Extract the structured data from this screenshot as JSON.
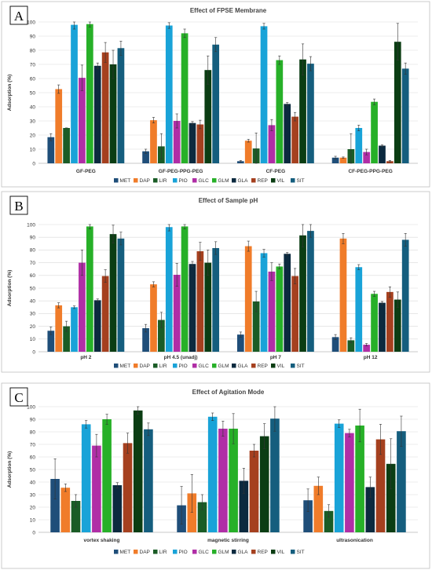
{
  "series_names": [
    "MET",
    "DAP",
    "LIR",
    "PIO",
    "GLC",
    "GLM",
    "GLA",
    "REP",
    "VIL",
    "SIT"
  ],
  "colors": {
    "MET": "#1f4e79",
    "DAP": "#f07c2a",
    "LIR": "#1a5c26",
    "PIO": "#19a3d8",
    "GLC": "#b02ea6",
    "GLM": "#27b028",
    "GLA": "#0c2a3f",
    "REP": "#a5401f",
    "VIL": "#0b3d13",
    "SIT": "#155e7e"
  },
  "chart_data": [
    {
      "type": "bar",
      "panel_label": "A",
      "title": "Effect of FPSE Membrane",
      "ylabel": "Adsorption (%)",
      "ylim": [
        0,
        100
      ],
      "yticks": [
        "0",
        "10",
        "20",
        "30",
        "40",
        "50",
        "60",
        "70",
        "80",
        "90",
        "100"
      ],
      "categories": [
        "GF-PEG",
        "GF-PEG-PPG-PEG",
        "CF-PEG",
        "CF-PEG-PPG-PEG"
      ],
      "series": [
        {
          "name": "MET",
          "values": [
            18.5,
            8.5,
            1.5,
            4
          ],
          "errors": [
            2.5,
            1.5,
            0.5,
            1
          ]
        },
        {
          "name": "DAP",
          "values": [
            52.5,
            30.5,
            16,
            4
          ],
          "errors": [
            3,
            2,
            1,
            0.5
          ]
        },
        {
          "name": "LIR",
          "values": [
            25,
            12,
            10.5,
            10
          ],
          "errors": [
            0,
            9,
            11,
            11
          ]
        },
        {
          "name": "PIO",
          "values": [
            98,
            97.5,
            97,
            25
          ],
          "errors": [
            3,
            2,
            2,
            2
          ]
        },
        {
          "name": "GLC",
          "values": [
            60.5,
            30,
            27,
            8
          ],
          "errors": [
            9,
            5,
            4,
            2
          ]
        },
        {
          "name": "GLM",
          "values": [
            98.5,
            92,
            73,
            43.5
          ],
          "errors": [
            2,
            3,
            3,
            2
          ]
        },
        {
          "name": "GLA",
          "values": [
            69,
            28.5,
            42,
            12.5
          ],
          "errors": [
            2,
            1,
            1,
            0.5
          ]
        },
        {
          "name": "REP",
          "values": [
            78.5,
            27.5,
            33,
            1.5
          ],
          "errors": [
            7,
            3,
            3,
            0.5
          ]
        },
        {
          "name": "VIL",
          "values": [
            70,
            66,
            73.5,
            86
          ],
          "errors": [
            10,
            10,
            11,
            13
          ]
        },
        {
          "name": "SIT",
          "values": [
            81.5,
            84,
            70.5,
            67
          ],
          "errors": [
            5,
            5,
            5,
            4
          ]
        }
      ]
    },
    {
      "type": "bar",
      "panel_label": "B",
      "title": "Effect of Sample pH",
      "ylabel": "Adsorption (%)",
      "ylim": [
        0,
        100
      ],
      "yticks": [
        "0",
        "10",
        "20",
        "30",
        "40",
        "50",
        "60",
        "70",
        "80",
        "90",
        "100"
      ],
      "categories": [
        "pH 2",
        "pH 4.5 (unadj)",
        "pH 7",
        "pH 12"
      ],
      "series": [
        {
          "name": "MET",
          "values": [
            16.5,
            18.5,
            13.5,
            11.5
          ],
          "errors": [
            3,
            3,
            2,
            2
          ]
        },
        {
          "name": "DAP",
          "values": [
            36.5,
            53,
            83,
            89
          ],
          "errors": [
            2,
            2,
            4,
            4
          ]
        },
        {
          "name": "LIR",
          "values": [
            20,
            25,
            39.5,
            9
          ],
          "errors": [
            4,
            6,
            8,
            2
          ]
        },
        {
          "name": "PIO",
          "values": [
            35,
            98,
            77.5,
            66.5
          ],
          "errors": [
            1,
            3,
            3,
            2
          ]
        },
        {
          "name": "GLC",
          "values": [
            70,
            60.5,
            63,
            5.5
          ],
          "errors": [
            10,
            9,
            7,
            1
          ]
        },
        {
          "name": "GLM",
          "values": [
            98.5,
            98.5,
            67,
            45.5
          ],
          "errors": [
            2,
            2,
            2,
            2
          ]
        },
        {
          "name": "GLA",
          "values": [
            40.5,
            69,
            77,
            38.5
          ],
          "errors": [
            1,
            2,
            1,
            1
          ]
        },
        {
          "name": "REP",
          "values": [
            59.5,
            79,
            59.5,
            47
          ],
          "errors": [
            5,
            7,
            6,
            4
          ]
        },
        {
          "name": "VIL",
          "values": [
            92.5,
            70,
            91.5,
            41
          ],
          "errors": [
            7,
            10,
            9,
            6
          ]
        },
        {
          "name": "SIT",
          "values": [
            89,
            81.5,
            95,
            88
          ],
          "errors": [
            5,
            5,
            5,
            5
          ]
        }
      ]
    },
    {
      "type": "bar",
      "panel_label": "C",
      "title": "Effect of Agitation Mode",
      "ylabel": "Adsorption (%)",
      "ylim": [
        0,
        100
      ],
      "yticks": [
        "0",
        "10",
        "20",
        "30",
        "40",
        "50",
        "60",
        "70",
        "80",
        "90",
        "100"
      ],
      "categories": [
        "vortex shaking",
        "magnetic stirring",
        "ultrasonication"
      ],
      "series": [
        {
          "name": "MET",
          "values": [
            42.5,
            21.5,
            25.5
          ],
          "errors": [
            16,
            15,
            9
          ]
        },
        {
          "name": "DAP",
          "values": [
            35.5,
            31,
            37
          ],
          "errors": [
            3,
            15,
            7
          ]
        },
        {
          "name": "LIR",
          "values": [
            25,
            24,
            17
          ],
          "errors": [
            5,
            6,
            5
          ]
        },
        {
          "name": "PIO",
          "values": [
            86,
            92,
            86.5
          ],
          "errors": [
            3,
            3,
            3
          ]
        },
        {
          "name": "GLC",
          "values": [
            69,
            82.5,
            79
          ],
          "errors": [
            9,
            6,
            3
          ]
        },
        {
          "name": "GLM",
          "values": [
            90,
            82.5,
            85
          ],
          "errors": [
            4,
            12,
            13
          ]
        },
        {
          "name": "GLA",
          "values": [
            37.5,
            41,
            36
          ],
          "errors": [
            2,
            10,
            8
          ]
        },
        {
          "name": "REP",
          "values": [
            71,
            65,
            74
          ],
          "errors": [
            8,
            5,
            12
          ]
        },
        {
          "name": "VIL",
          "values": [
            97,
            76.5,
            54.5
          ],
          "errors": [
            3,
            10,
            20
          ]
        },
        {
          "name": "SIT",
          "values": [
            82,
            90.5,
            80.5
          ],
          "errors": [
            5,
            10,
            12
          ]
        }
      ]
    }
  ]
}
